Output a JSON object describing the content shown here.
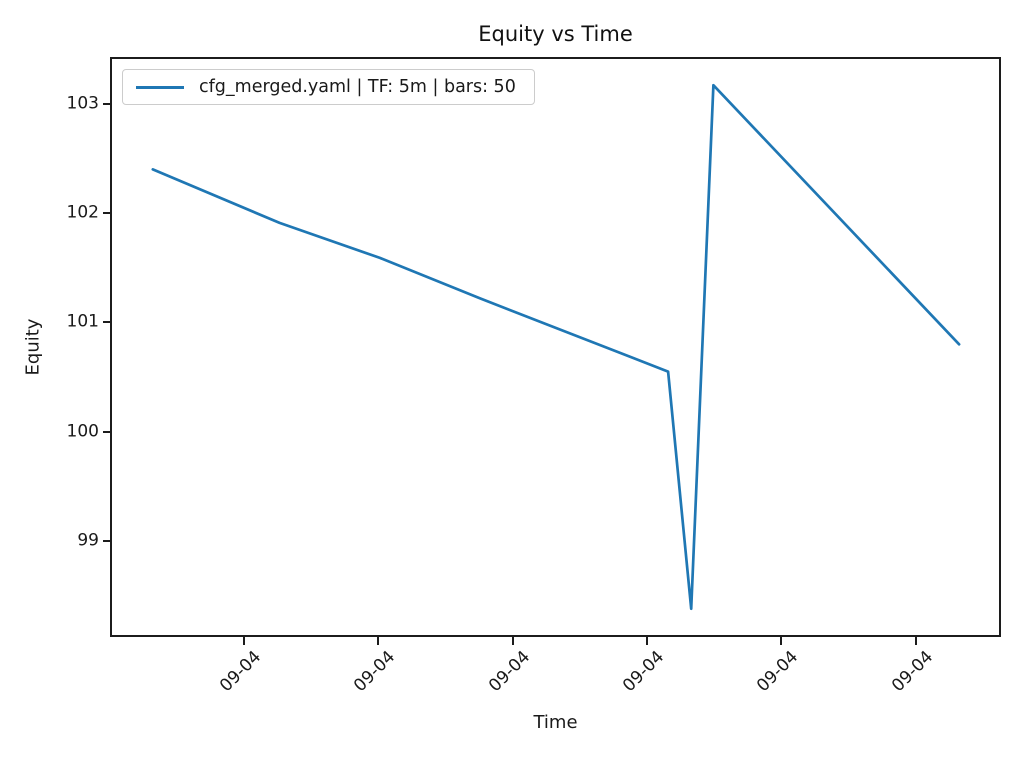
{
  "chart_data": {
    "type": "line",
    "title": "Equity vs Time",
    "xlabel": "Time",
    "ylabel": "Equity",
    "grid": false,
    "legend": {
      "position": "upper-left",
      "entries": [
        "cfg_merged.yaml | TF: 5m | bars: 50"
      ]
    },
    "xlim": [
      0,
      1
    ],
    "ylim": [
      98.14,
      103.41
    ],
    "x_ticks": {
      "positions": [
        0.149,
        0.3,
        0.452,
        0.603,
        0.754,
        0.906
      ],
      "labels": [
        "09-04",
        "09-04",
        "09-04",
        "09-04",
        "09-04",
        "09-04"
      ]
    },
    "y_ticks": [
      99,
      100,
      101,
      102,
      103
    ],
    "series": [
      {
        "name": "cfg_merged.yaml | TF: 5m | bars: 50",
        "color": "#1f77b4",
        "line_width": 2.7,
        "x": [
          0.046,
          0.189,
          0.302,
          0.415,
          0.627,
          0.653,
          0.678,
          0.955
        ],
        "y": [
          102.4,
          101.91,
          101.59,
          101.22,
          100.55,
          98.38,
          103.17,
          100.8
        ]
      }
    ]
  },
  "colors": {
    "background": "#ffffff",
    "text": "#1a1a1a",
    "spine": "#1c1c1c",
    "legend_border": "#cccccc"
  }
}
